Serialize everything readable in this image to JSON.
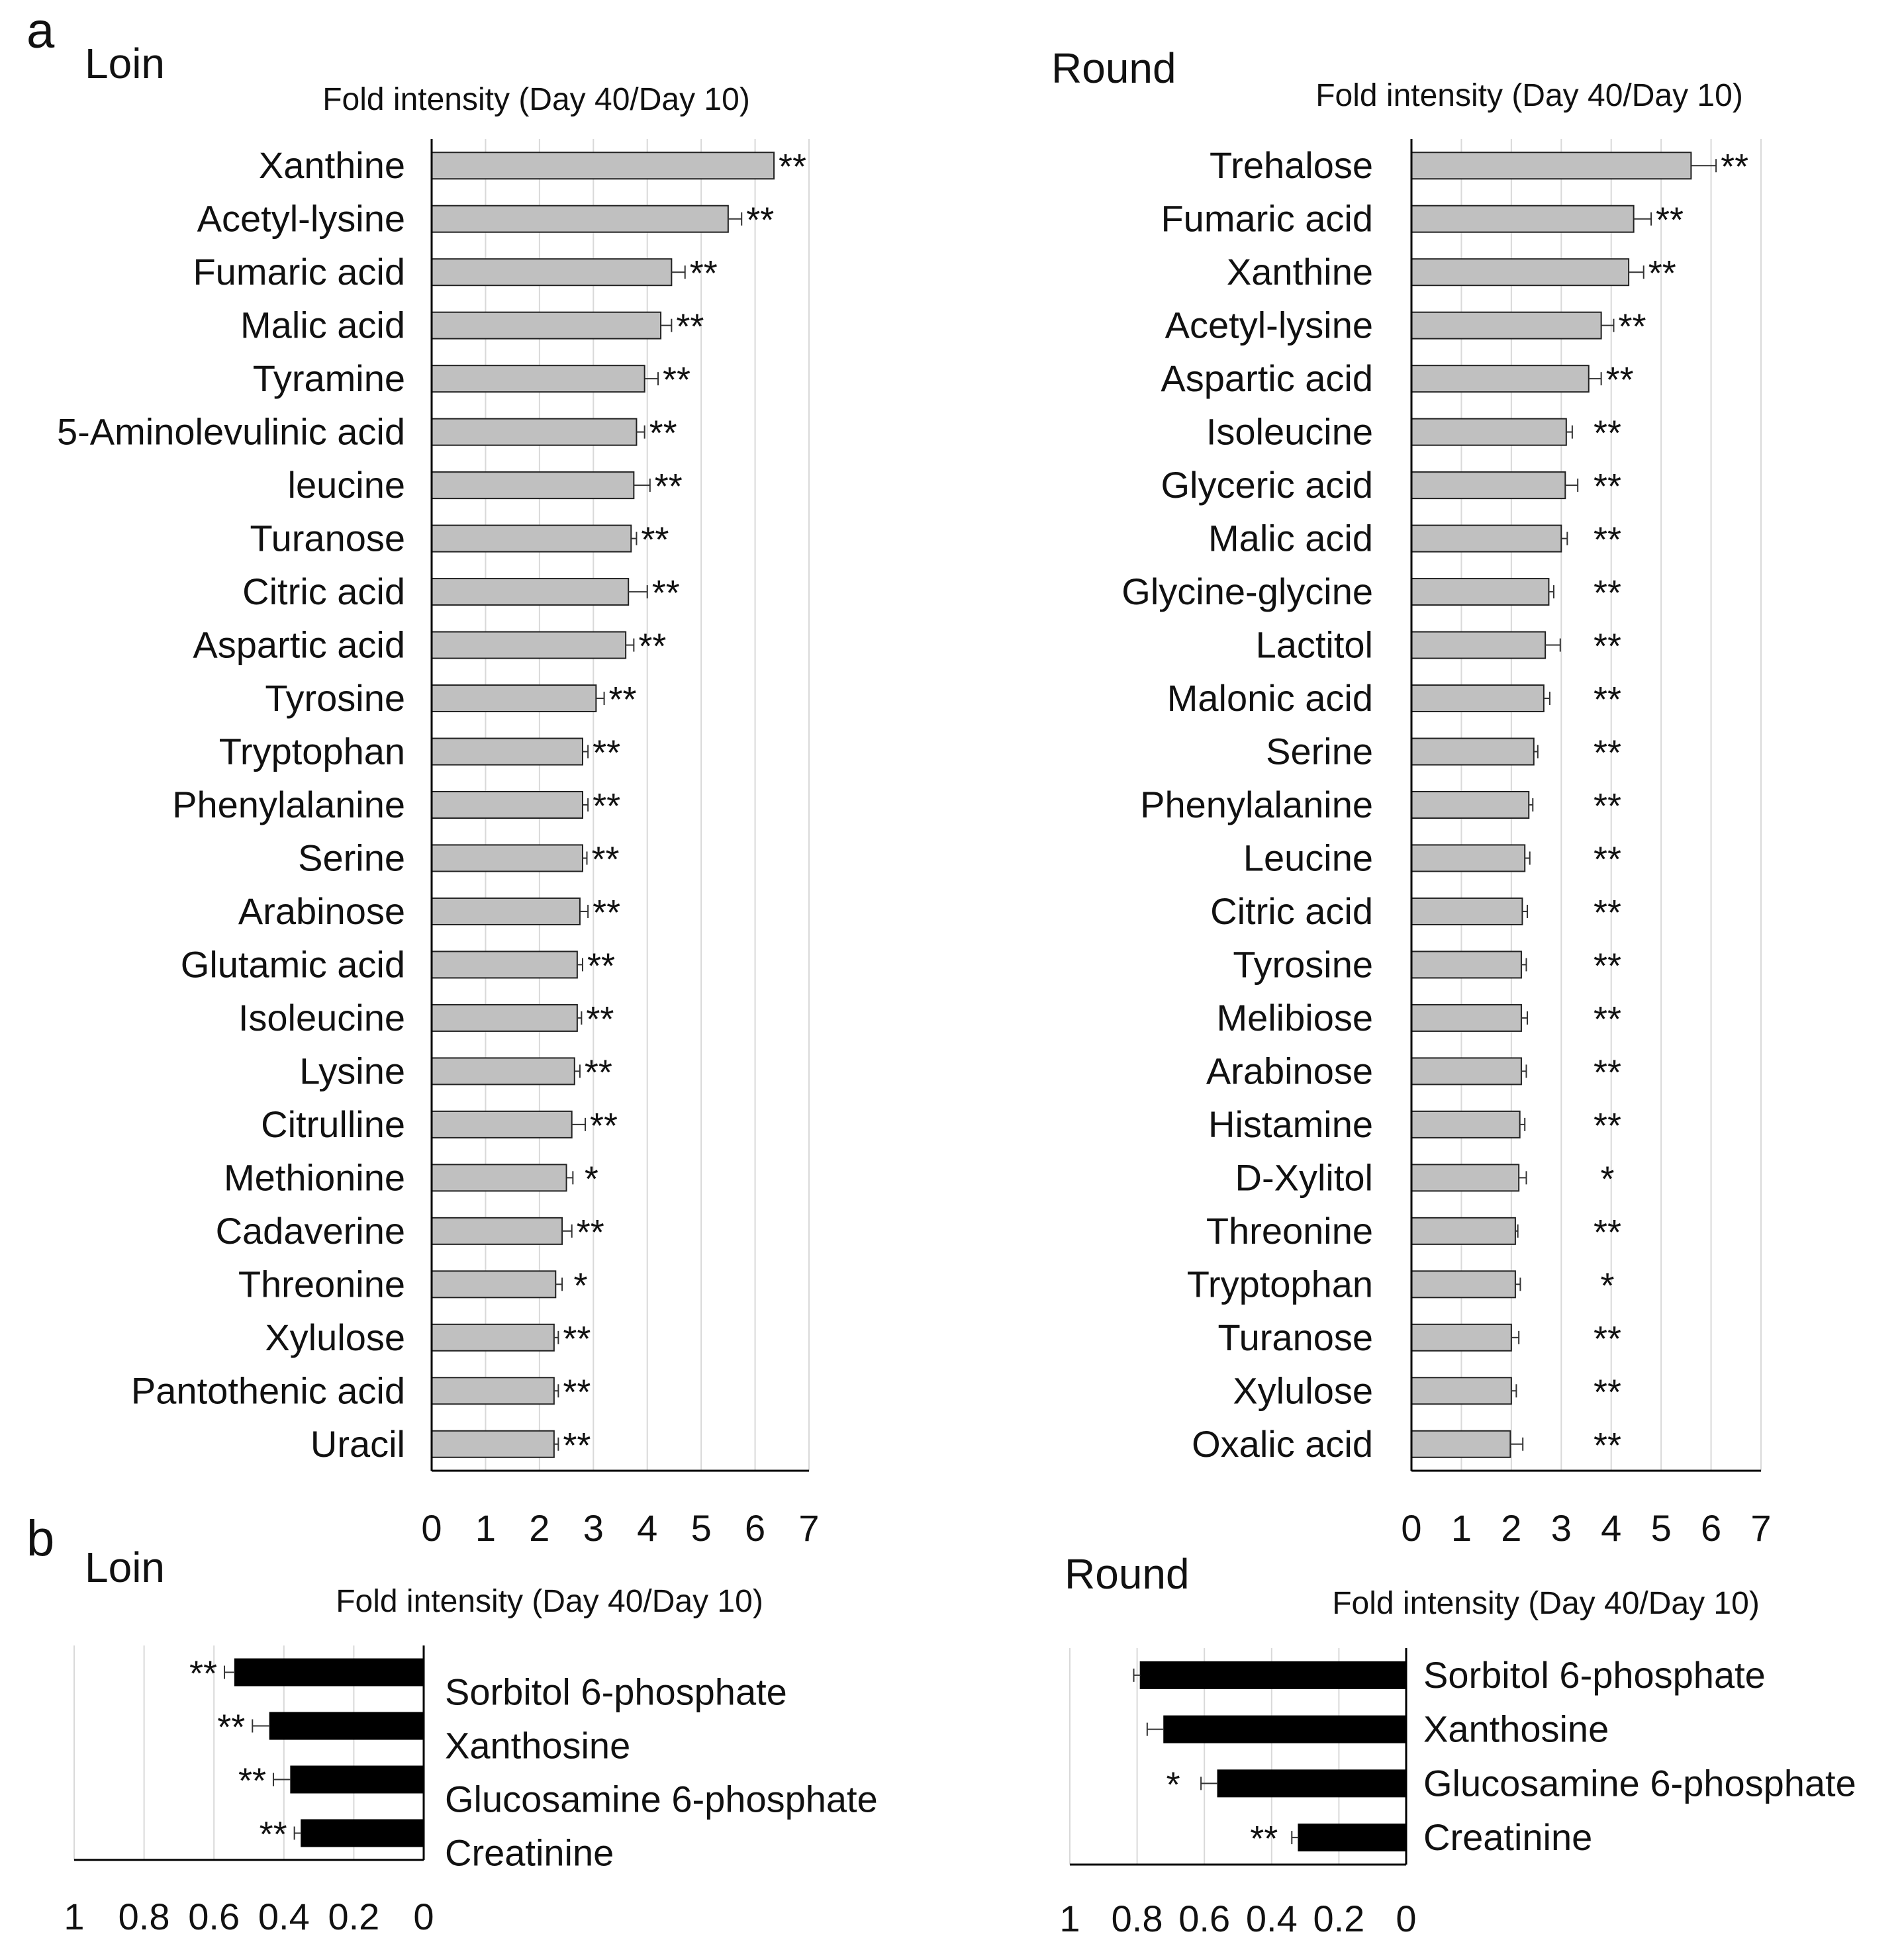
{
  "panel_labels": {
    "a": "a",
    "b": "b"
  },
  "colors": {
    "bar_a": "#c0c0c0",
    "bar_b": "#000000",
    "grid": "#d9d9d9",
    "axis": "#000000"
  },
  "chart_data": [
    {
      "type": "bar",
      "panel": "a",
      "title": "Loin",
      "xlabel": "Fold intensity (Day 40/Day 10)",
      "xlim": [
        0,
        7
      ],
      "xticks": [
        "0",
        "1",
        "2",
        "3",
        "4",
        "5",
        "6",
        "7"
      ],
      "grid": true,
      "categories": [
        "Xanthine",
        "Acetyl-lysine",
        "Fumaric acid",
        "Malic acid",
        "Tyramine",
        "5-Aminolevulinic acid",
        "leucine",
        "Turanose",
        "Citric acid",
        "Aspartic acid",
        "Tyrosine",
        "Tryptophan",
        "Phenylalanine",
        "Serine",
        "Arabinose",
        "Glutamic acid",
        "Isoleucine",
        "Lysine",
        "Citrulline",
        "Methionine",
        "Cadaverine",
        "Threonine",
        "Xylulose",
        "Pantothenic acid",
        "Uracil"
      ],
      "values": [
        6.35,
        5.5,
        4.45,
        4.25,
        3.95,
        3.8,
        3.75,
        3.7,
        3.65,
        3.6,
        3.05,
        2.8,
        2.8,
        2.8,
        2.75,
        2.7,
        2.7,
        2.65,
        2.6,
        2.5,
        2.42,
        2.3,
        2.27,
        2.27,
        2.27
      ],
      "errors": [
        0.0,
        0.25,
        0.25,
        0.2,
        0.25,
        0.15,
        0.3,
        0.1,
        0.35,
        0.15,
        0.15,
        0.1,
        0.1,
        0.08,
        0.15,
        0.1,
        0.08,
        0.1,
        0.25,
        0.12,
        0.18,
        0.12,
        0.08,
        0.08,
        0.08
      ],
      "significance": [
        "**",
        "**",
        "**",
        "**",
        "**",
        "**",
        "**",
        "**",
        "**",
        "**",
        "**",
        "**",
        "**",
        "**",
        "**",
        "**",
        "**",
        "**",
        "**",
        "*",
        "**",
        "*",
        "**",
        "**",
        "**"
      ]
    },
    {
      "type": "bar",
      "panel": "a",
      "title": "Round",
      "xlabel": "Fold intensity (Day 40/Day 10)",
      "xlim": [
        0,
        7
      ],
      "xticks": [
        "0",
        "1",
        "2",
        "3",
        "4",
        "5",
        "6",
        "7"
      ],
      "grid": true,
      "categories": [
        "Trehalose",
        "Fumaric acid",
        "Xanthine",
        "Acetyl-lysine",
        "Aspartic acid",
        "Isoleucine",
        "Glyceric acid",
        "Malic acid",
        "Glycine-glycine",
        "Lactitol",
        "Malonic acid",
        "Serine",
        "Phenylalanine",
        "Leucine",
        "Citric acid",
        "Tyrosine",
        "Melibiose",
        "Arabinose",
        "Histamine",
        "D-Xylitol",
        "Threonine",
        "Tryptophan",
        "Turanose",
        "Xylulose",
        "Oxalic acid"
      ],
      "values": [
        5.6,
        4.45,
        4.35,
        3.8,
        3.55,
        3.1,
        3.08,
        3.0,
        2.75,
        2.68,
        2.65,
        2.45,
        2.35,
        2.27,
        2.22,
        2.2,
        2.2,
        2.2,
        2.17,
        2.15,
        2.08,
        2.08,
        2.0,
        2.0,
        1.98
      ],
      "errors": [
        0.5,
        0.35,
        0.3,
        0.25,
        0.25,
        0.12,
        0.25,
        0.12,
        0.1,
        0.3,
        0.12,
        0.08,
        0.08,
        0.1,
        0.1,
        0.1,
        0.12,
        0.1,
        0.1,
        0.15,
        0.05,
        0.1,
        0.15,
        0.1,
        0.25
      ],
      "significance": [
        "**",
        "**",
        "**",
        "**",
        "**",
        "**",
        "**",
        "**",
        "**",
        "**",
        "**",
        "**",
        "**",
        "**",
        "**",
        "**",
        "**",
        "**",
        "**",
        "*",
        "**",
        "*",
        "**",
        "**",
        "**"
      ]
    },
    {
      "type": "bar",
      "panel": "b",
      "title": "Loin",
      "xlabel": "Fold intensity (Day 40/Day 10)",
      "xlim": [
        1,
        0
      ],
      "xticks": [
        "1",
        "0.8",
        "0.6",
        "0.4",
        "0.2",
        "0"
      ],
      "grid": true,
      "categories": [
        "Sorbitol 6-phosphate",
        "Xanthosine",
        "Glucosamine 6-phosphate",
        "Creatinine"
      ],
      "values": [
        0.54,
        0.44,
        0.38,
        0.35
      ],
      "errors": [
        0.03,
        0.05,
        0.05,
        0.02
      ],
      "significance": [
        "**",
        "**",
        "**",
        "**"
      ]
    },
    {
      "type": "bar",
      "panel": "b",
      "title": "Round",
      "xlabel": "Fold intensity (Day 40/Day 10)",
      "xlim": [
        1,
        0
      ],
      "xticks": [
        "1",
        "0.8",
        "0.6",
        "0.4",
        "0.2",
        "0"
      ],
      "grid": true,
      "categories": [
        "Sorbitol 6-phosphate",
        "Xanthosine",
        "Glucosamine 6-phosphate",
        "Creatinine"
      ],
      "values": [
        0.79,
        0.72,
        0.56,
        0.32
      ],
      "errors": [
        0.02,
        0.05,
        0.05,
        0.02
      ],
      "significance": [
        "",
        "",
        "*",
        "**"
      ]
    }
  ]
}
